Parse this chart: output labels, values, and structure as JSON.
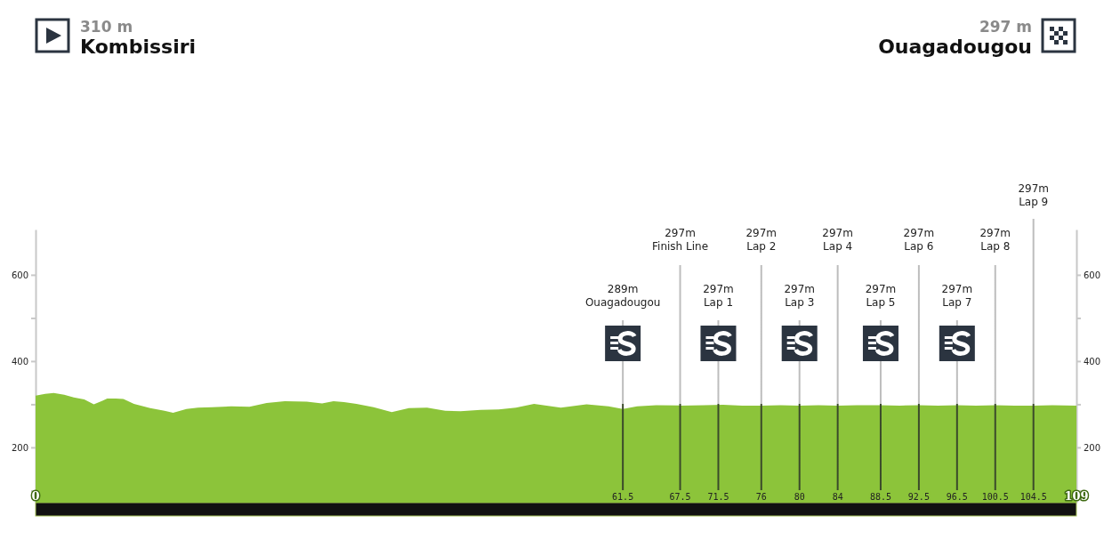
{
  "chart_data": {
    "type": "area",
    "x": [
      0,
      1,
      1.9,
      3,
      4,
      5.1,
      6.1,
      7,
      7.5,
      8.4,
      9.2,
      10.3,
      12,
      13.5,
      14.4,
      15.8,
      17,
      18.5,
      20.5,
      22.4,
      24.2,
      26.1,
      28.4,
      30,
      31.2,
      32.3,
      33.6,
      35.4,
      37.3,
      39.1,
      41,
      42.9,
      44.5,
      46.6,
      48.5,
      50.3,
      52.2,
      55,
      57.7,
      60,
      61.5,
      63,
      65,
      67.5,
      70,
      72,
      74,
      76,
      78,
      80,
      82,
      84,
      86,
      88.5,
      90.5,
      92.5,
      94.5,
      96.5,
      98.5,
      100.5,
      102.5,
      104.5,
      106.5,
      109
    ],
    "series": [
      {
        "color": "#8cc43a",
        "values": [
          320,
          324,
          326,
          322,
          316,
          311,
          300,
          308,
          313,
          313,
          312,
          301,
          291,
          285,
          280,
          289,
          292,
          293,
          295,
          294,
          303,
          307,
          306,
          302,
          307,
          305,
          301,
          293,
          282,
          291,
          292,
          285,
          284,
          287,
          288,
          292,
          301,
          292,
          300,
          295,
          289,
          295,
          298,
          297,
          298,
          299,
          297,
          297,
          298,
          297,
          298,
          297,
          298,
          298,
          297,
          298,
          297,
          298,
          297,
          298,
          297,
          297,
          298,
          297
        ]
      }
    ],
    "xlim": [
      0,
      109
    ],
    "ylim": [
      72,
      705
    ],
    "xticks": [
      0,
      61.5,
      67.5,
      71.5,
      76,
      80,
      84,
      88.5,
      92.5,
      96.5,
      100.5,
      104.5,
      109
    ],
    "yticks": [
      {
        "value": 100,
        "label": null
      },
      200,
      {
        "value": 300,
        "label": null
      },
      400,
      {
        "value": 500,
        "label": null
      },
      600
    ],
    "y2lim": [
      72,
      705
    ],
    "y2ticks": [
      {
        "value": 100,
        "label": null
      },
      200,
      {
        "value": 300,
        "label": null
      },
      400,
      {
        "value": 500,
        "label": null
      },
      600
    ],
    "ref_lines": [
      {
        "axis": "x",
        "value": 61.5,
        "label": "289m\nOuagadougou"
      },
      {
        "axis": "x",
        "value": 67.5,
        "label": "297m\nFinish Line"
      },
      {
        "axis": "x",
        "value": 71.5,
        "label": "297m\nLap 1"
      },
      {
        "axis": "x",
        "value": 76,
        "label": "297m\nLap 2"
      },
      {
        "axis": "x",
        "value": 80,
        "label": "297m\nLap 3"
      },
      {
        "axis": "x",
        "value": 84,
        "label": "297m\nLap 4"
      },
      {
        "axis": "x",
        "value": 88.5,
        "label": "297m\nLap 5"
      },
      {
        "axis": "x",
        "value": 92.5,
        "label": "297m\nLap 6"
      },
      {
        "axis": "x",
        "value": 96.5,
        "label": "297m\nLap 7"
      },
      {
        "axis": "x",
        "value": 100.5,
        "label": "297m\nLap 8"
      },
      {
        "axis": "x",
        "value": 104.5,
        "label": "297m\nLap 9"
      }
    ],
    "annotations": [
      "310 m",
      "Kombissiri",
      "297 m",
      "Ouagadougou"
    ],
    "line_style": "solid"
  }
}
